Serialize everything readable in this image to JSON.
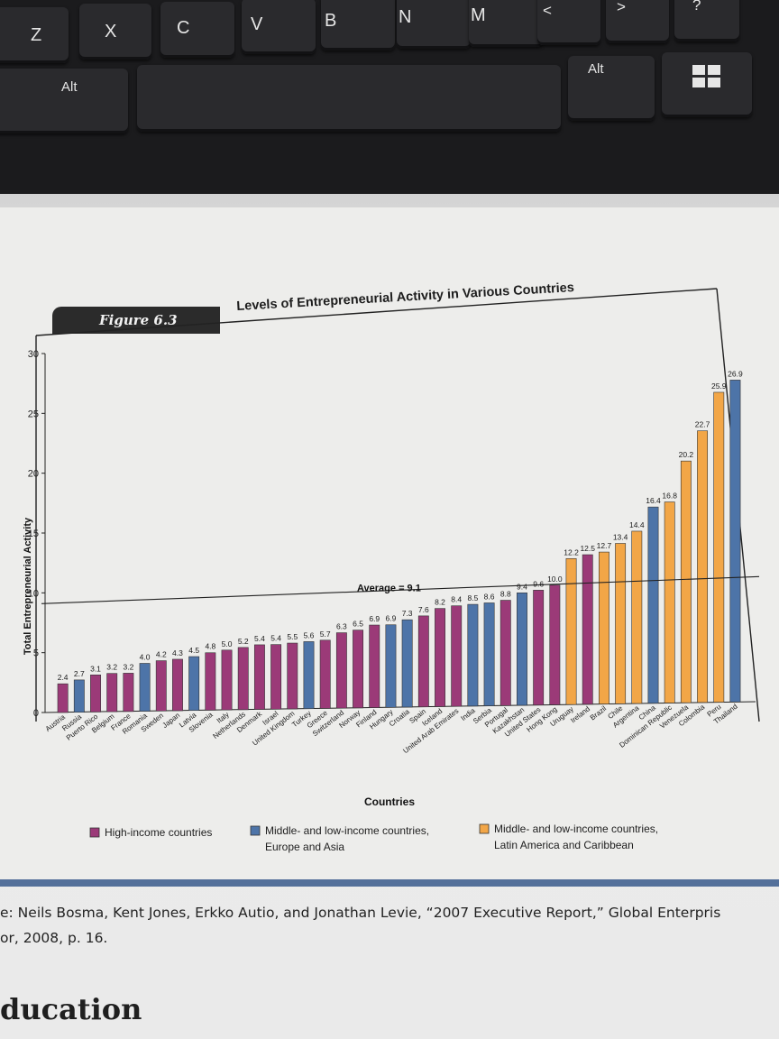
{
  "keyboard": {
    "keys": [
      "Z",
      "X",
      "C",
      "V",
      "B",
      "N",
      "M",
      "<",
      ">",
      "?",
      "Alt",
      "Alt"
    ],
    "windows_key_icon": "windows-logo-icon"
  },
  "figure": {
    "badge": "Figure 6.3",
    "title": "Levels of Entrepreneurial Activity in Various Countries"
  },
  "source": {
    "line1": "e: Neils Bosma, Kent Jones, Erkko Autio, and Jonathan Levie, “2007 Executive Report,” Global Enterpris",
    "line2": "or, 2008, p. 16."
  },
  "footer_fragment": "ducation",
  "chart_data": {
    "type": "bar",
    "title": "Levels of Entrepreneurial Activity in Various Countries",
    "xlabel": "Countries",
    "ylabel": "Total Entrepreneurial Activity",
    "ylim": [
      0,
      30
    ],
    "yticks": [
      0,
      5,
      10,
      15,
      20,
      25,
      30
    ],
    "average": {
      "value": 9.1,
      "label": "Average = 9.1"
    },
    "groups": [
      {
        "key": "high",
        "name": "High-income countries",
        "color": "#9b3a78"
      },
      {
        "key": "eu",
        "name": "Middle- and low-income countries, Europe and Asia",
        "color": "#4d74a8"
      },
      {
        "key": "la",
        "name": "Middle- and low-income countries, Latin America and Caribbean",
        "color": "#f2a647"
      }
    ],
    "legend": [
      {
        "line1": "High-income countries",
        "line2": ""
      },
      {
        "line1": "Middle- and low-income countries,",
        "line2": "Europe and Asia"
      },
      {
        "line1": "Middle- and low-income countries,",
        "line2": "Latin America and Caribbean"
      }
    ],
    "bars": [
      {
        "country": "Austria",
        "value": 2.4,
        "label": "2.4",
        "group": "high"
      },
      {
        "country": "Russia",
        "value": 2.7,
        "label": "2.7",
        "group": "eu"
      },
      {
        "country": "Puerto Rico",
        "value": 3.1,
        "label": "3.1",
        "group": "high"
      },
      {
        "country": "Belgium",
        "value": 3.2,
        "label": "3.2",
        "group": "high"
      },
      {
        "country": "France",
        "value": 3.2,
        "label": "3.2",
        "group": "high"
      },
      {
        "country": "Romania",
        "value": 4.0,
        "label": "4.0",
        "group": "eu"
      },
      {
        "country": "Sweden",
        "value": 4.2,
        "label": "4.2",
        "group": "high"
      },
      {
        "country": "Japan",
        "value": 4.3,
        "label": "4.3",
        "group": "high"
      },
      {
        "country": "Latvia",
        "value": 4.5,
        "label": "4.5",
        "group": "eu"
      },
      {
        "country": "Slovenia",
        "value": 4.8,
        "label": "4.8",
        "group": "high"
      },
      {
        "country": "Italy",
        "value": 5.0,
        "label": "5.0",
        "group": "high"
      },
      {
        "country": "Netherlands",
        "value": 5.2,
        "label": "5.2",
        "group": "high"
      },
      {
        "country": "Denmark",
        "value": 5.4,
        "label": "5.4",
        "group": "high"
      },
      {
        "country": "Israel",
        "value": 5.4,
        "label": "5.4",
        "group": "high"
      },
      {
        "country": "United Kingdom",
        "value": 5.5,
        "label": "5.5",
        "group": "high"
      },
      {
        "country": "Turkey",
        "value": 5.6,
        "label": "5.6",
        "group": "eu"
      },
      {
        "country": "Greece",
        "value": 5.7,
        "label": "5.7",
        "group": "high"
      },
      {
        "country": "Switzerland",
        "value": 6.3,
        "label": "6.3",
        "group": "high"
      },
      {
        "country": "Norway",
        "value": 6.5,
        "label": "6.5",
        "group": "high"
      },
      {
        "country": "Finland",
        "value": 6.9,
        "label": "6.9",
        "group": "high"
      },
      {
        "country": "Hungary",
        "value": 6.9,
        "label": "6.9",
        "group": "eu"
      },
      {
        "country": "Croatia",
        "value": 7.3,
        "label": "7.3",
        "group": "eu"
      },
      {
        "country": "Spain",
        "value": 7.6,
        "label": "7.6",
        "group": "high"
      },
      {
        "country": "Iceland",
        "value": 8.2,
        "label": "8.2",
        "group": "high"
      },
      {
        "country": "United Arab Emirates",
        "value": 8.4,
        "label": "8.4",
        "group": "high"
      },
      {
        "country": "India",
        "value": 8.5,
        "label": "8.5",
        "group": "eu"
      },
      {
        "country": "Serbia",
        "value": 8.6,
        "label": "8.6",
        "group": "eu"
      },
      {
        "country": "Portugal",
        "value": 8.8,
        "label": "8.8",
        "group": "high"
      },
      {
        "country": "Kazakhstan",
        "value": 9.4,
        "label": "9.4",
        "group": "eu"
      },
      {
        "country": "United States",
        "value": 9.6,
        "label": "9.6",
        "group": "high"
      },
      {
        "country": "Hong Kong",
        "value": 10.0,
        "label": "10.0",
        "group": "high"
      },
      {
        "country": "Uruguay",
        "value": 12.2,
        "label": "12.2",
        "group": "la"
      },
      {
        "country": "Ireland",
        "value": 12.5,
        "label": "12.5",
        "group": "high"
      },
      {
        "country": "Brazil",
        "value": 12.7,
        "label": "12.7",
        "group": "la"
      },
      {
        "country": "Chile",
        "value": 13.4,
        "label": "13.4",
        "group": "la"
      },
      {
        "country": "Argentina",
        "value": 14.4,
        "label": "14.4",
        "group": "la"
      },
      {
        "country": "China",
        "value": 16.4,
        "label": "16.4",
        "group": "eu"
      },
      {
        "country": "Dominican Republic",
        "value": 16.8,
        "label": "16.8",
        "group": "la"
      },
      {
        "country": "Venezuela",
        "value": 20.2,
        "label": "20.2",
        "group": "la"
      },
      {
        "country": "Colombia",
        "value": 22.7,
        "label": "22.7",
        "group": "la"
      },
      {
        "country": "Peru",
        "value": 25.9,
        "label": "25.9",
        "group": "la"
      },
      {
        "country": "Thailand",
        "value": 26.9,
        "label": "26.9",
        "group": "eu"
      }
    ]
  }
}
